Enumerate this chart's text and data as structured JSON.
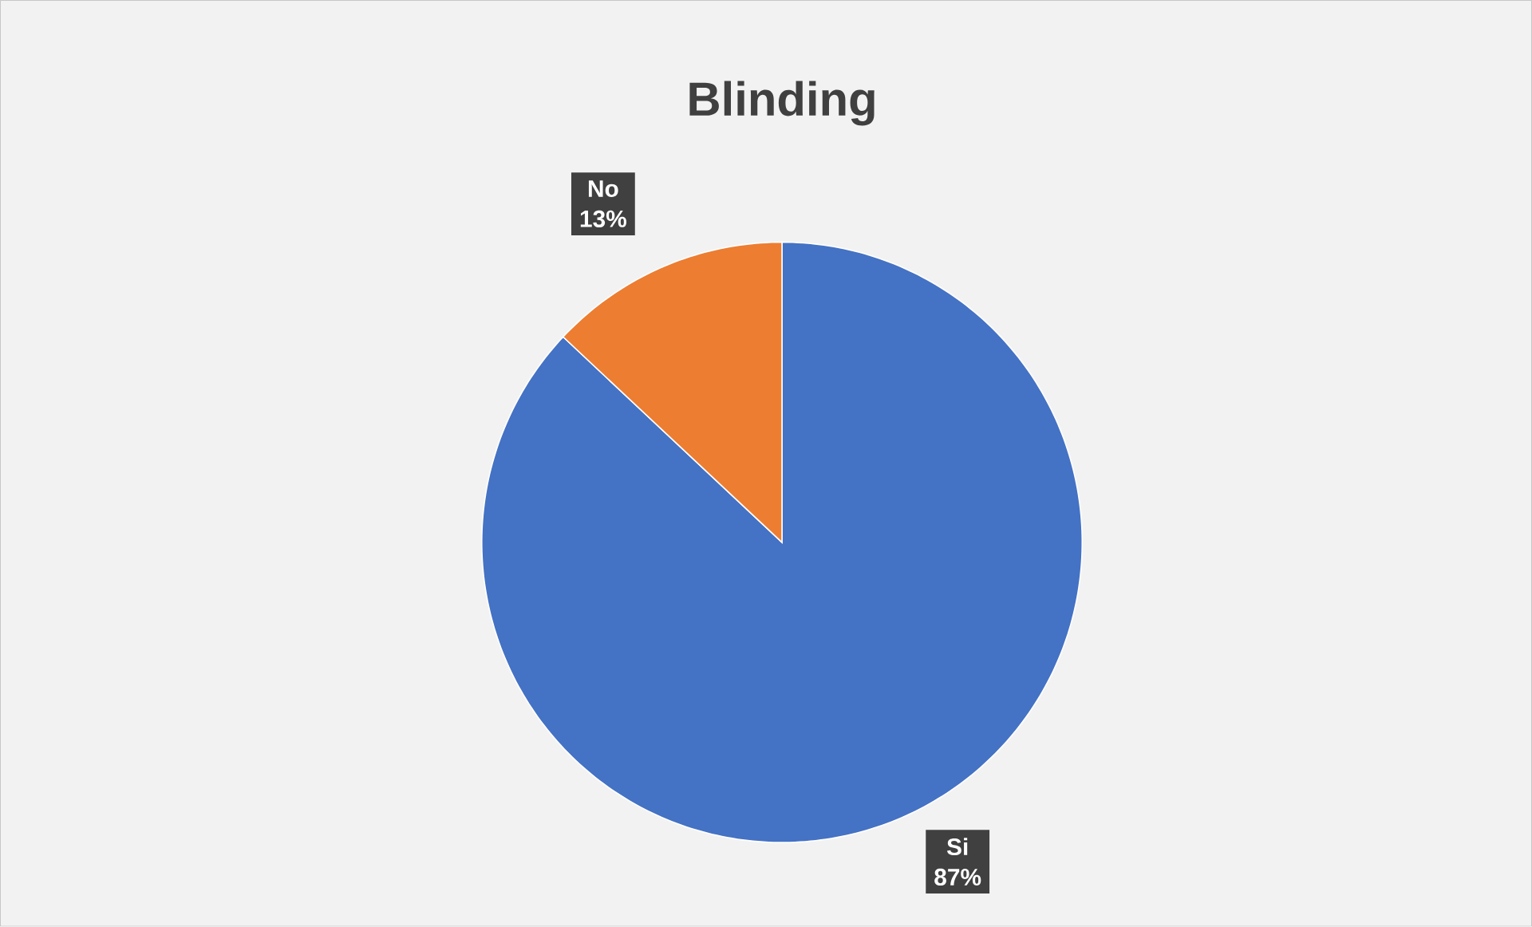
{
  "chart_data": {
    "type": "pie",
    "title": "Blinding",
    "categories": [
      "Si",
      "No"
    ],
    "values": [
      87,
      13
    ],
    "colors": [
      "#4472c4",
      "#ed7d31"
    ],
    "value_labels": [
      "87%",
      "13%"
    ]
  }
}
